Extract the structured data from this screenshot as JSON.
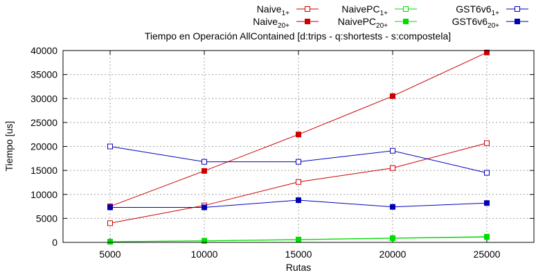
{
  "chart_data": {
    "type": "line",
    "title": "Tiempo en Operación AllContained [d:trips - q:shortests - s:compostela]",
    "xlabel": "Rutas",
    "ylabel": "Tiempo [us]",
    "x": [
      5000,
      10000,
      15000,
      20000,
      25000
    ],
    "xlim": [
      2500,
      27500
    ],
    "ylim": [
      0,
      40000
    ],
    "xticks": [
      5000,
      10000,
      15000,
      20000,
      25000
    ],
    "yticks": [
      0,
      5000,
      10000,
      15000,
      20000,
      25000,
      30000,
      35000,
      40000
    ],
    "grid": true,
    "legend_position": "top-right",
    "series": [
      {
        "name": "Naive",
        "sub": "1+",
        "color": "#cc0000",
        "marker": "open-square",
        "values": [
          4000,
          7700,
          12600,
          15500,
          20700
        ]
      },
      {
        "name": "Naive",
        "sub": "20+",
        "color": "#cc0000",
        "marker": "filled-square",
        "values": [
          7500,
          14900,
          22500,
          30500,
          39600
        ]
      },
      {
        "name": "NaivePC",
        "sub": "1+",
        "color": "#00dd00",
        "marker": "open-square",
        "values": [
          120,
          300,
          550,
          850,
          1100
        ]
      },
      {
        "name": "NaivePC",
        "sub": "20+",
        "color": "#00dd00",
        "marker": "filled-square",
        "values": [
          150,
          350,
          600,
          900,
          1200
        ]
      },
      {
        "name": "GST6v6",
        "sub": "1+",
        "color": "#0000bb",
        "marker": "open-square",
        "values": [
          20000,
          16800,
          16800,
          19100,
          14500
        ]
      },
      {
        "name": "GST6v6",
        "sub": "20+",
        "color": "#0000bb",
        "marker": "filled-square",
        "values": [
          7300,
          7300,
          8800,
          7400,
          8200
        ]
      }
    ]
  }
}
